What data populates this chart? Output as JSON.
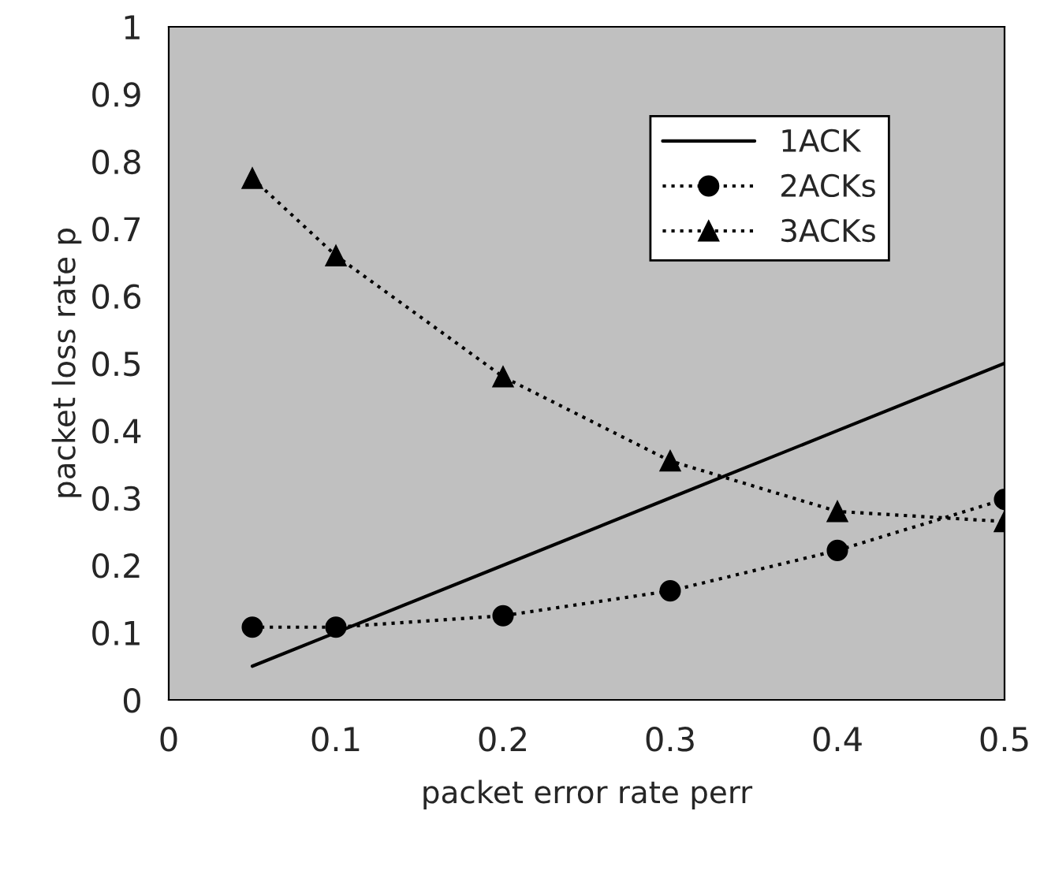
{
  "chart_data": {
    "type": "line",
    "xlabel": "packet error rate perr",
    "ylabel": "packet loss rate p",
    "x": [
      0.05,
      0.1,
      0.2,
      0.3,
      0.4,
      0.5
    ],
    "series": [
      {
        "name": "1ACK",
        "color": "#000000",
        "values": [
          0.05,
          0.1,
          0.2,
          0.3,
          0.4,
          0.5
        ],
        "marker": "none",
        "line_style": "solid"
      },
      {
        "name": "2ACKs",
        "color": "#000000",
        "values": [
          0.108,
          0.108,
          0.125,
          0.162,
          0.222,
          0.298
        ],
        "marker": "circle",
        "line_style": "dotted"
      },
      {
        "name": "3ACKs",
        "color": "#000000",
        "values": [
          0.775,
          0.66,
          0.48,
          0.355,
          0.28,
          0.265
        ],
        "marker": "triangle",
        "line_style": "dotted"
      }
    ],
    "xlim": [
      0,
      0.5
    ],
    "ylim": [
      0,
      1
    ],
    "xticks": [
      0,
      0.1,
      0.2,
      0.3,
      0.4,
      0.5
    ],
    "yticks": [
      0,
      0.1,
      0.2,
      0.3,
      0.4,
      0.5,
      0.6,
      0.7,
      0.8,
      0.9,
      1
    ],
    "grid": false,
    "legend": "top right"
  }
}
